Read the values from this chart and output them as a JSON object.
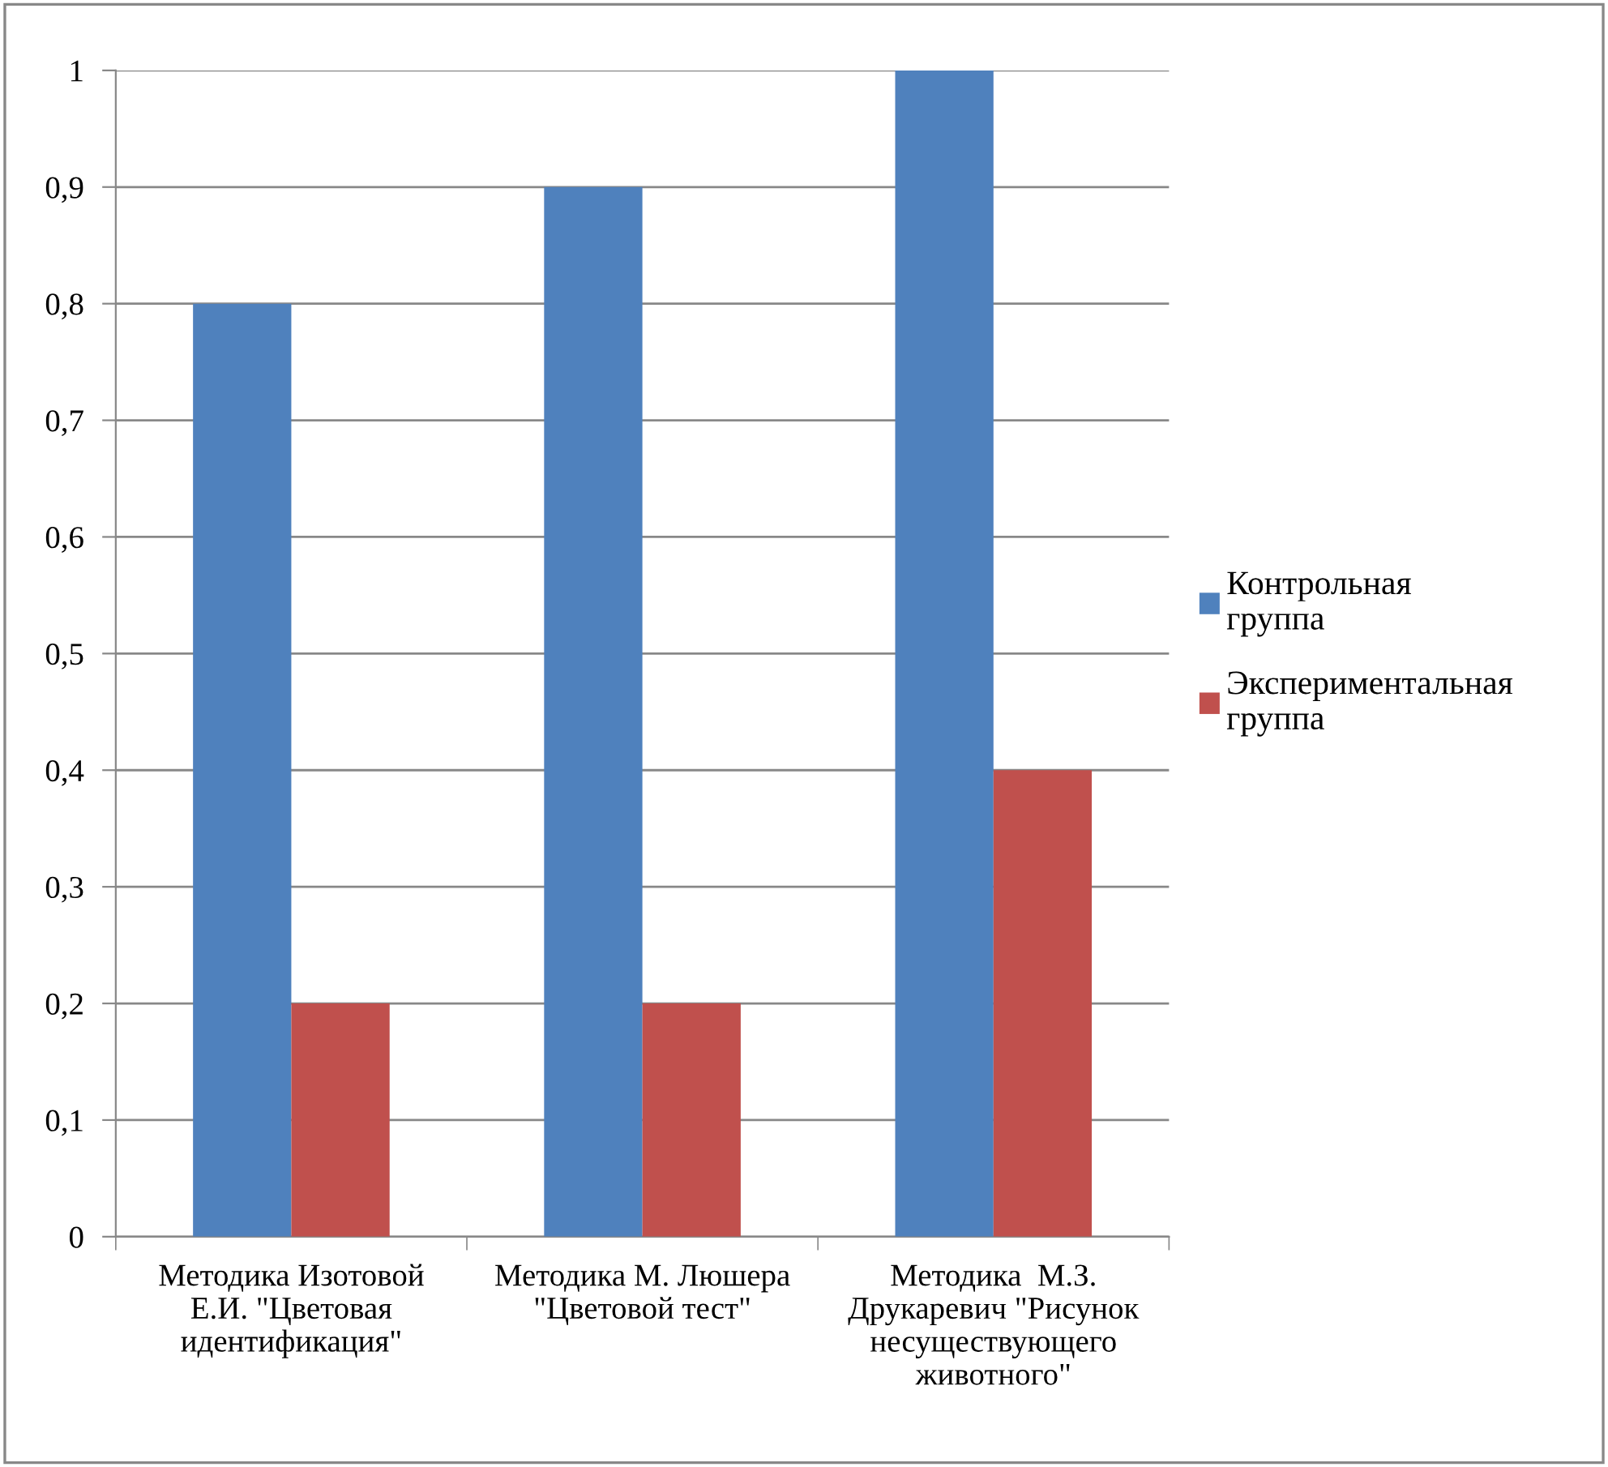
{
  "chart_data": {
    "type": "bar",
    "categories": [
      "Методика Изотовой\nЕ.И. \"Цветовая\nидентификация\"",
      "Методика М. Люшера\n\"Цветовой тест\"",
      "Методика  М.З.\nДрукаревич \"Рисунок\nнесуществующего\nживотного\""
    ],
    "series": [
      {
        "name": "Контрольная\nгруппа",
        "color": "#4f81bd",
        "values": [
          0.8,
          0.9,
          1
        ]
      },
      {
        "name": "Экспериментальная\nгруппа",
        "color": "#c0504d",
        "values": [
          0.2,
          0.2,
          0.4
        ]
      }
    ],
    "ylim": [
      0,
      1
    ],
    "yticks": [
      0,
      {
        "value": 0.1,
        "label": "0,1"
      },
      {
        "value": 0.2,
        "label": "0,2"
      },
      {
        "value": 0.3,
        "label": "0,3"
      },
      {
        "value": 0.4,
        "label": "0,4"
      },
      {
        "value": 0.5,
        "label": "0,5"
      },
      {
        "value": 0.6,
        "label": "0,6"
      },
      {
        "value": 0.7,
        "label": "0,7"
      },
      {
        "value": 0.8,
        "label": "0,8"
      },
      {
        "value": 0.9,
        "label": "0,9"
      },
      1
    ],
    "grid": "y",
    "legend": "right"
  }
}
